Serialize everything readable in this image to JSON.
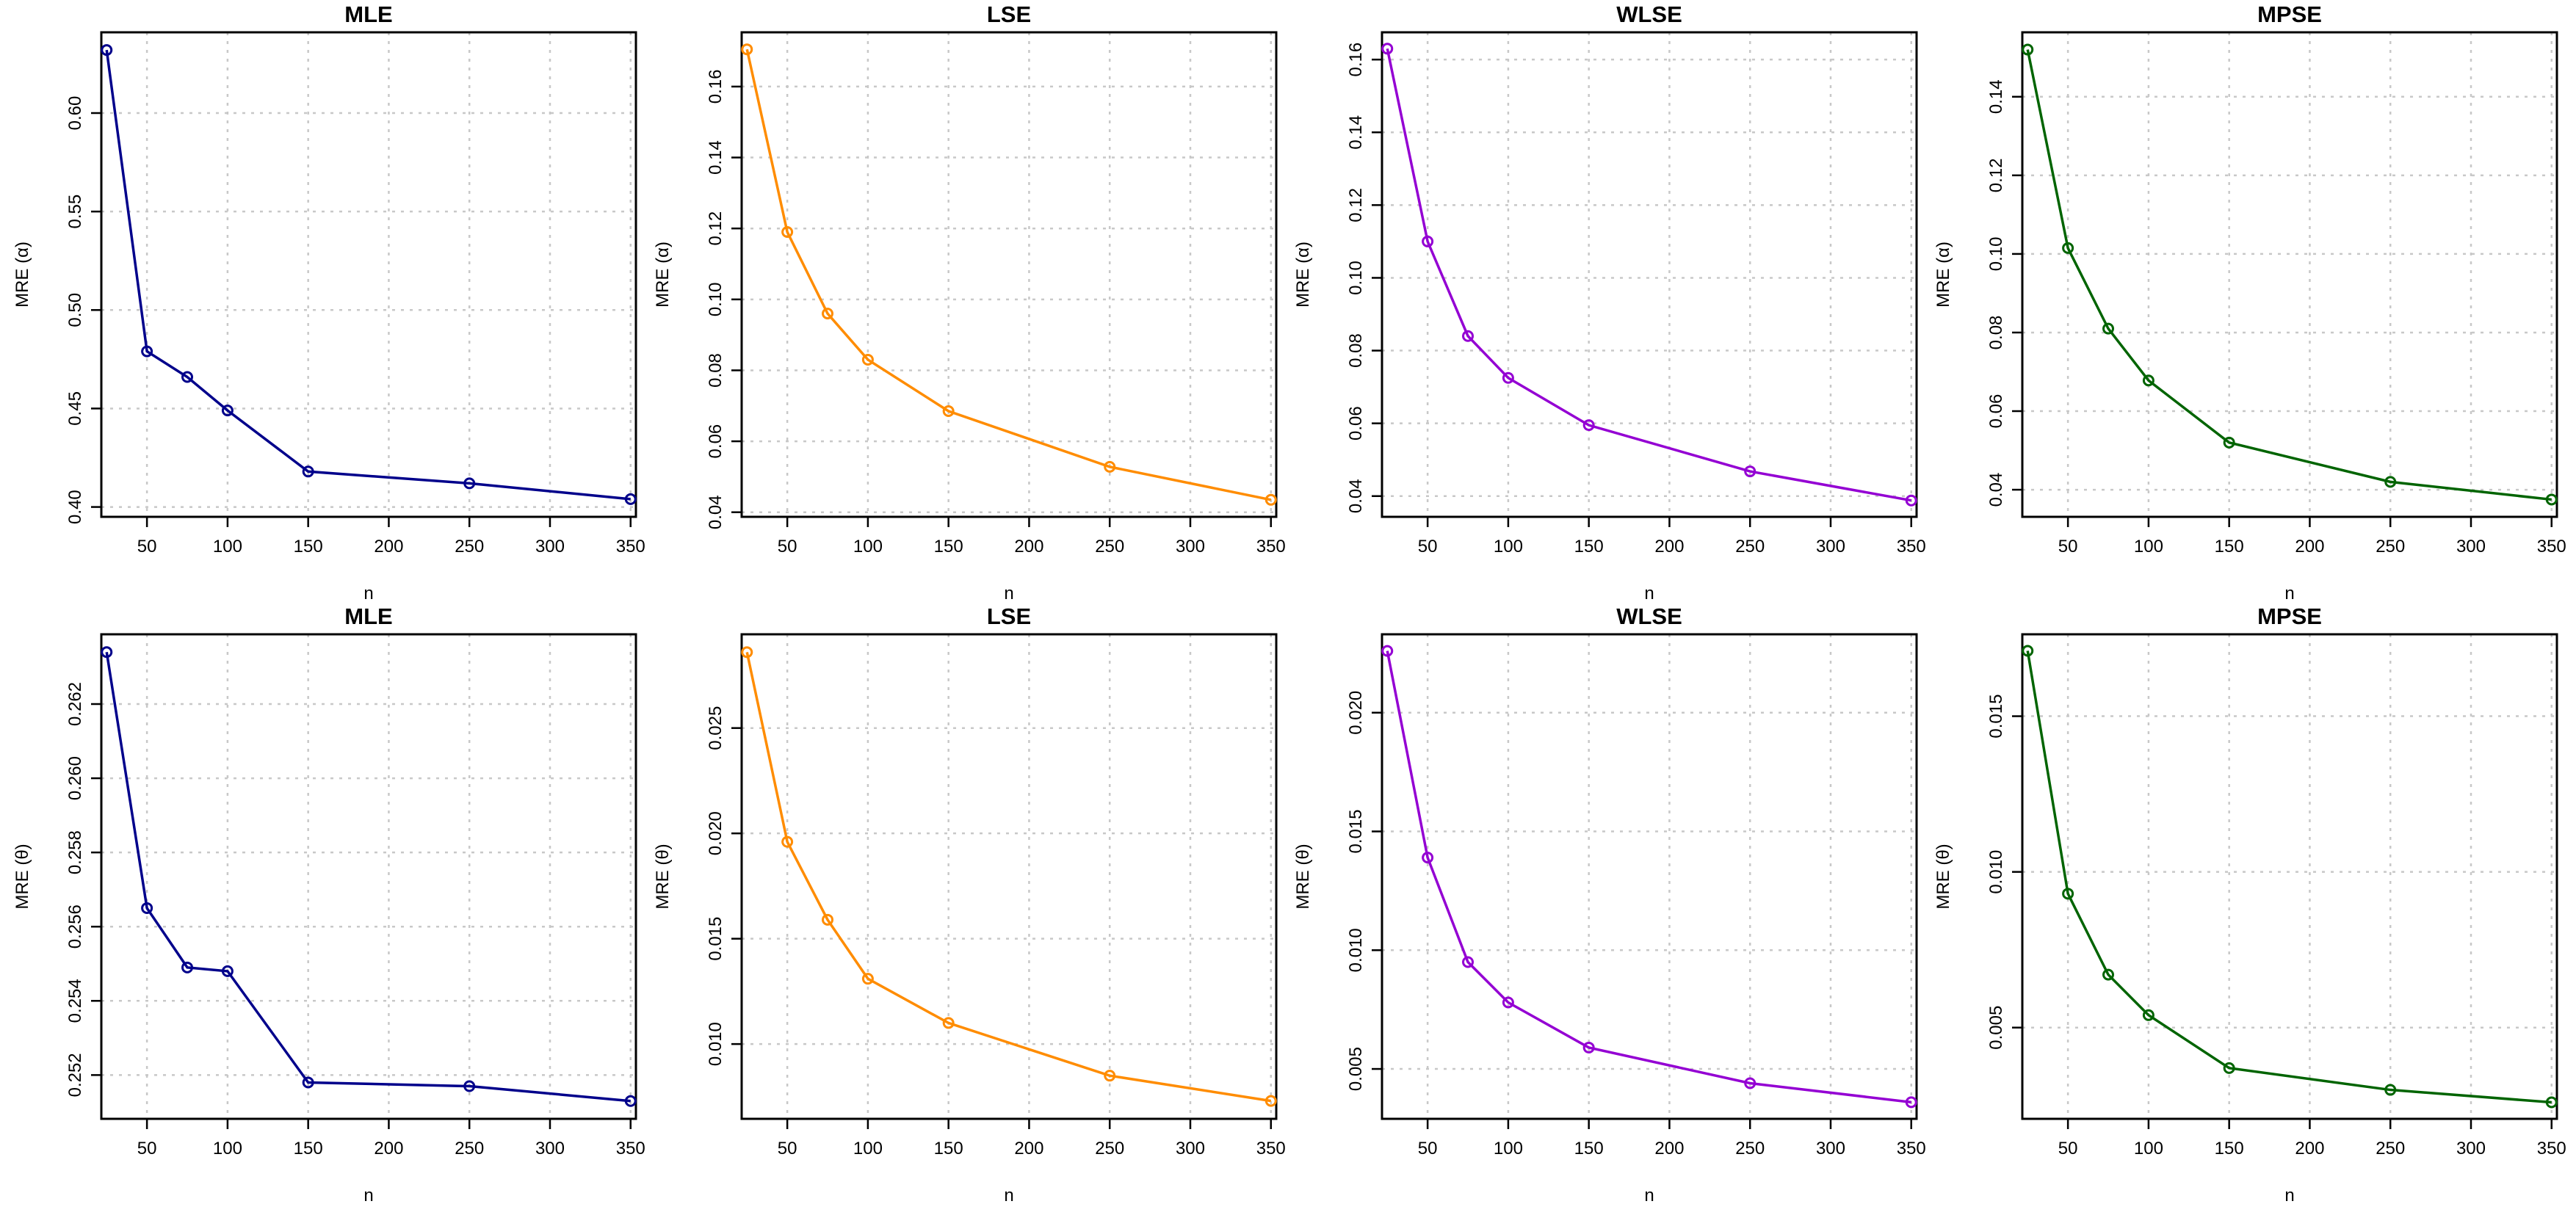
{
  "chart_data": [
    {
      "type": "line",
      "title": "MLE",
      "xlabel": "n",
      "ylabel": "MRE (α)",
      "color": "#00008b",
      "x": [
        25,
        50,
        75,
        100,
        150,
        250,
        350
      ],
      "y": [
        0.632,
        0.479,
        0.466,
        0.449,
        0.418,
        0.412,
        0.404
      ],
      "xlim": [
        21.7,
        353.3
      ],
      "ylim": [
        0.395,
        0.641
      ],
      "xticks": [
        50,
        100,
        150,
        200,
        250,
        300,
        350
      ],
      "yticks": [
        0.4,
        0.45,
        0.5,
        0.55,
        0.6
      ],
      "ytick_labels": [
        "0.40",
        "0.45",
        "0.50",
        "0.55",
        "0.60"
      ],
      "grid": true
    },
    {
      "type": "line",
      "title": "LSE",
      "xlabel": "n",
      "ylabel": "MRE (α)",
      "color": "#ff8c00",
      "x": [
        25,
        50,
        75,
        100,
        150,
        250,
        350
      ],
      "y": [
        0.1705,
        0.119,
        0.096,
        0.083,
        0.0685,
        0.0528,
        0.0435
      ],
      "xlim": [
        21.7,
        353.3
      ],
      "ylim": [
        0.0387,
        0.1753
      ],
      "xticks": [
        50,
        100,
        150,
        200,
        250,
        300,
        350
      ],
      "yticks": [
        0.04,
        0.06,
        0.08,
        0.1,
        0.12,
        0.14,
        0.16
      ],
      "ytick_labels": [
        "0.04",
        "0.06",
        "0.08",
        "0.10",
        "0.12",
        "0.14",
        "0.16"
      ],
      "grid": true
    },
    {
      "type": "line",
      "title": "WLSE",
      "xlabel": "n",
      "ylabel": "MRE (α)",
      "color": "#9400d3",
      "x": [
        25,
        50,
        75,
        100,
        150,
        250,
        350
      ],
      "y": [
        0.163,
        0.11,
        0.084,
        0.0725,
        0.0595,
        0.0468,
        0.0388
      ],
      "xlim": [
        21.7,
        353.3
      ],
      "ylim": [
        0.0343,
        0.1675
      ],
      "xticks": [
        50,
        100,
        150,
        200,
        250,
        300,
        350
      ],
      "yticks": [
        0.04,
        0.06,
        0.08,
        0.1,
        0.12,
        0.14,
        0.16
      ],
      "ytick_labels": [
        "0.04",
        "0.06",
        "0.08",
        "0.10",
        "0.12",
        "0.14",
        "0.16"
      ],
      "grid": true
    },
    {
      "type": "line",
      "title": "MPSE",
      "xlabel": "n",
      "ylabel": "MRE (α)",
      "color": "#006400",
      "x": [
        25,
        50,
        75,
        100,
        150,
        250,
        350
      ],
      "y": [
        0.152,
        0.1015,
        0.081,
        0.0678,
        0.052,
        0.042,
        0.0375
      ],
      "xlim": [
        21.7,
        353.3
      ],
      "ylim": [
        0.0331,
        0.1564
      ],
      "xticks": [
        50,
        100,
        150,
        200,
        250,
        300,
        350
      ],
      "yticks": [
        0.04,
        0.06,
        0.08,
        0.1,
        0.12,
        0.14
      ],
      "ytick_labels": [
        "0.04",
        "0.06",
        "0.08",
        "0.10",
        "0.12",
        "0.14"
      ],
      "grid": true
    },
    {
      "type": "line",
      "title": "MLE",
      "xlabel": "n",
      "ylabel": "MRE (θ)",
      "color": "#00008b",
      "x": [
        25,
        50,
        75,
        100,
        150,
        250,
        350
      ],
      "y": [
        0.2634,
        0.2565,
        0.2549,
        0.2548,
        0.2518,
        0.2517,
        0.2513
      ],
      "xlim": [
        21.7,
        353.3
      ],
      "ylim": [
        0.25082,
        0.26388
      ],
      "xticks": [
        50,
        100,
        150,
        200,
        250,
        300,
        350
      ],
      "yticks": [
        0.252,
        0.254,
        0.256,
        0.258,
        0.26,
        0.262
      ],
      "ytick_labels": [
        "0.252",
        "0.254",
        "0.256",
        "0.258",
        "0.260",
        "0.262"
      ],
      "grid": true
    },
    {
      "type": "line",
      "title": "LSE",
      "xlabel": "n",
      "ylabel": "MRE (θ)",
      "color": "#ff8c00",
      "x": [
        25,
        50,
        75,
        100,
        150,
        250,
        350
      ],
      "y": [
        0.0286,
        0.0196,
        0.0159,
        0.0131,
        0.011,
        0.0085,
        0.0073
      ],
      "xlim": [
        21.7,
        353.3
      ],
      "ylim": [
        0.00645,
        0.02945
      ],
      "xticks": [
        50,
        100,
        150,
        200,
        250,
        300,
        350
      ],
      "yticks": [
        0.01,
        0.015,
        0.02,
        0.025
      ],
      "ytick_labels": [
        "0.010",
        "0.015",
        "0.020",
        "0.025"
      ],
      "grid": true
    },
    {
      "type": "line",
      "title": "WLSE",
      "xlabel": "n",
      "ylabel": "MRE (θ)",
      "color": "#9400d3",
      "x": [
        25,
        50,
        75,
        100,
        150,
        250,
        350
      ],
      "y": [
        0.0226,
        0.0139,
        0.0095,
        0.0078,
        0.0059,
        0.0044,
        0.0036
      ],
      "xlim": [
        21.7,
        353.3
      ],
      "ylim": [
        0.0029,
        0.0233
      ],
      "xticks": [
        50,
        100,
        150,
        200,
        250,
        300,
        350
      ],
      "yticks": [
        0.005,
        0.01,
        0.015,
        0.02
      ],
      "ytick_labels": [
        "0.005",
        "0.010",
        "0.015",
        "0.020"
      ],
      "grid": true
    },
    {
      "type": "line",
      "title": "MPSE",
      "xlabel": "n",
      "ylabel": "MRE (θ)",
      "color": "#006400",
      "x": [
        25,
        50,
        75,
        100,
        150,
        250,
        350
      ],
      "y": [
        0.0171,
        0.0093,
        0.0067,
        0.0054,
        0.0037,
        0.003,
        0.0026
      ],
      "xlim": [
        21.7,
        353.3
      ],
      "ylim": [
        0.00207,
        0.01763
      ],
      "xticks": [
        50,
        100,
        150,
        200,
        250,
        300,
        350
      ],
      "yticks": [
        0.005,
        0.01,
        0.015
      ],
      "ytick_labels": [
        "0.005",
        "0.010",
        "0.015"
      ],
      "grid": true
    }
  ]
}
